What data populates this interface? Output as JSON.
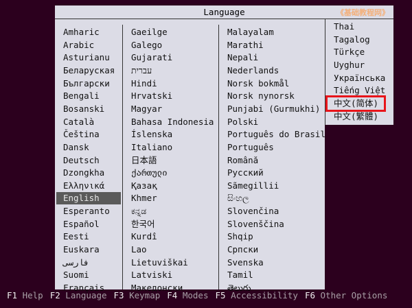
{
  "title": "Language",
  "watermark": "《基础教程网》",
  "columns": [
    [
      "Amharic",
      "Arabic",
      "Asturianu",
      "Беларуская",
      "Български",
      "Bengali",
      "Bosanski",
      "Català",
      "Čeština",
      "Dansk",
      "Deutsch",
      "Dzongkha",
      "Ελληνικά",
      "English",
      "Esperanto",
      "Español",
      "Eesti",
      "Euskara",
      "فارسی",
      "Suomi",
      "Français"
    ],
    [
      "Gaeilge",
      "Galego",
      "Gujarati",
      "עברית",
      "Hindi",
      "Hrvatski",
      "Magyar",
      "Bahasa Indonesia",
      "Íslenska",
      "Italiano",
      "日本語",
      "ქართული",
      "Қазақ",
      "Khmer",
      "ಕನ್ನಡ",
      "한국어",
      "Kurdî",
      "Lao",
      "Lietuviškai",
      "Latviski",
      "Македонски"
    ],
    [
      "Malayalam",
      "Marathi",
      "Nepali",
      "Nederlands",
      "Norsk bokmål",
      "Norsk nynorsk",
      "Punjabi (Gurmukhi)",
      "Polski",
      "Português do Brasil",
      "Português",
      "Română",
      "Русский",
      "Sãmegillii",
      "සිංහල",
      "Slovenčina",
      "Slovenščina",
      "Shqip",
      "Српски",
      "Svenska",
      "Tamil",
      "తెలుగు"
    ],
    [
      "Thai",
      "Tagalog",
      "Türkçe",
      "Uyghur",
      "Українська",
      "Tiếng Việt",
      "中文(简体)",
      "中文(繁體)"
    ]
  ],
  "selected": "English",
  "highlighted": "中文(简体)",
  "highlight_color": "#e8141a",
  "footer": [
    {
      "key": "F1",
      "label": "Help"
    },
    {
      "key": "F2",
      "label": "Language"
    },
    {
      "key": "F3",
      "label": "Keymap"
    },
    {
      "key": "F4",
      "label": "Modes"
    },
    {
      "key": "F5",
      "label": "Accessibility"
    },
    {
      "key": "F6",
      "label": "Other Options"
    }
  ]
}
